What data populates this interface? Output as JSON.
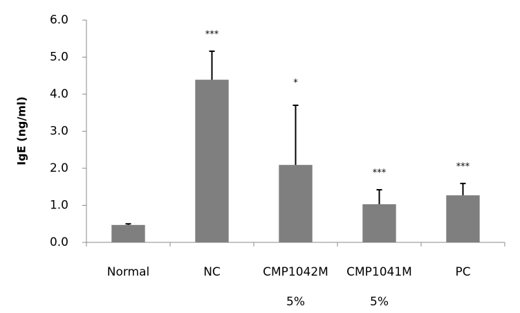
{
  "chart_data": {
    "type": "bar",
    "ylabel": "IgE (ng/ml)",
    "categories": [
      "Normal",
      "NC",
      "CMP1042M\n5%",
      "CMP1041M\n5%",
      "PC"
    ],
    "values": [
      0.47,
      4.39,
      2.09,
      1.03,
      1.27
    ],
    "errors": [
      0.03,
      0.77,
      1.61,
      0.39,
      0.32
    ],
    "annotations": [
      null,
      "***",
      "*",
      "***",
      "***"
    ],
    "color": "#7f7f7f",
    "ylim": [
      0,
      6
    ],
    "yticks": [
      {
        "value": 0,
        "label": "0.0"
      },
      {
        "value": 1,
        "label": "1.0"
      },
      {
        "value": 2,
        "label": "2.0"
      },
      {
        "value": 3,
        "label": "3.0"
      },
      {
        "value": 4,
        "label": "4.0"
      },
      {
        "value": 5,
        "label": "5.0"
      },
      {
        "value": 6,
        "label": "6.0"
      }
    ]
  }
}
